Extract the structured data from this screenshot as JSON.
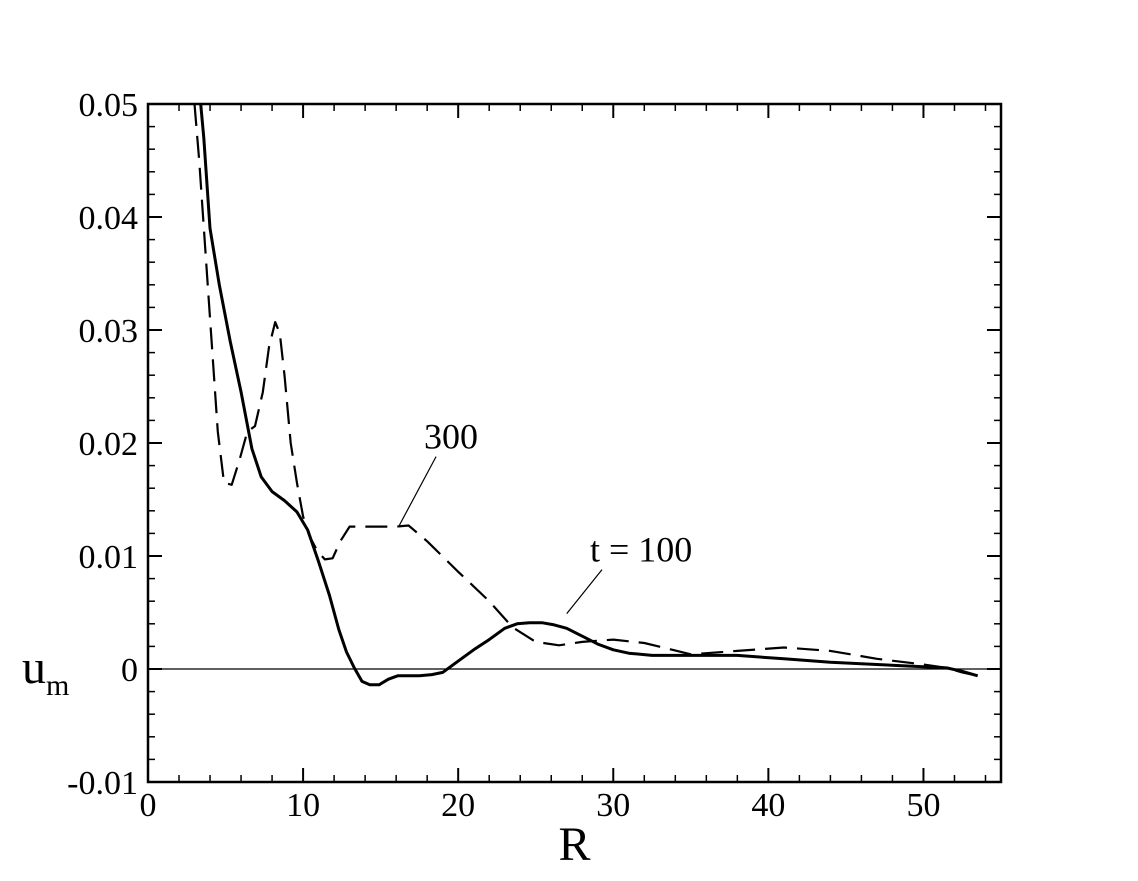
{
  "chart_data": {
    "type": "line",
    "title": "",
    "xlabel": "R",
    "ylabel": "u",
    "ylabel_subscript": "m",
    "xlim": [
      0,
      55
    ],
    "ylim": [
      -0.01,
      0.05
    ],
    "x_ticks": [
      0,
      10,
      20,
      30,
      40,
      50
    ],
    "x_tick_labels": [
      "0",
      "10",
      "20",
      "30",
      "40",
      "50"
    ],
    "y_ticks": [
      -0.01,
      0,
      0.01,
      0.02,
      0.03,
      0.04,
      0.05
    ],
    "y_tick_labels": [
      "-0.01",
      "0",
      "0.01",
      "0.02",
      "0.03",
      "0.04",
      "0.05"
    ],
    "grid": false,
    "zero_line": true,
    "series": [
      {
        "style": "solid",
        "x": [
          3.4,
          3.6,
          4.0,
          4.6,
          5.3,
          6.0,
          6.7,
          7.3,
          8.0,
          8.8,
          9.6,
          10.3,
          11.0,
          11.7,
          12.3,
          12.8,
          13.3,
          13.8,
          14.3,
          14.9,
          15.5,
          16.1,
          16.8,
          17.5,
          18.3,
          19.0,
          20.0,
          21.0,
          22.0,
          23.0,
          23.8,
          24.6,
          25.4,
          26.2,
          27.0,
          28.0,
          29.0,
          30.0,
          31.0,
          32.5,
          35.0,
          38.0,
          41.0,
          44.0,
          47.0,
          50.0,
          51.5,
          52.5,
          53.5
        ],
        "y": [
          0.05,
          0.047,
          0.039,
          0.034,
          0.029,
          0.0245,
          0.0195,
          0.017,
          0.0157,
          0.0149,
          0.0139,
          0.0123,
          0.0095,
          0.0065,
          0.0035,
          0.0015,
          0.0001,
          -0.0011,
          -0.0014,
          -0.0014,
          -0.0009,
          -0.0006,
          -0.0006,
          -0.0006,
          -0.0005,
          -0.0003,
          0.0007,
          0.0017,
          0.0026,
          0.0036,
          0.004,
          0.0041,
          0.0041,
          0.0039,
          0.0036,
          0.0029,
          0.0022,
          0.0017,
          0.0014,
          0.0012,
          0.0012,
          0.0012,
          0.0009,
          0.0006,
          0.0004,
          0.0002,
          0.0001,
          -0.0002,
          -0.0006
        ]
      },
      {
        "style": "dashed",
        "x": [
          3.0,
          3.3,
          3.7,
          4.1,
          4.5,
          4.9,
          5.4,
          5.9,
          6.4,
          6.9,
          7.4,
          7.8,
          8.2,
          8.5,
          8.8,
          9.2,
          9.6,
          10.0,
          10.4,
          10.9,
          11.4,
          11.9,
          12.4,
          13.0,
          14.0,
          15.0,
          16.0,
          16.8,
          18.0,
          20.0,
          22.0,
          23.5,
          25.0,
          26.5,
          28.0,
          30.0,
          32.0,
          35.0,
          38.0,
          41.0,
          44.0,
          47.0,
          50.0,
          51.5,
          52.5,
          53.5
        ],
        "y": [
          0.05,
          0.045,
          0.037,
          0.029,
          0.021,
          0.0165,
          0.0163,
          0.0185,
          0.021,
          0.0215,
          0.0245,
          0.0285,
          0.0307,
          0.0297,
          0.026,
          0.02,
          0.0165,
          0.0135,
          0.0118,
          0.0105,
          0.0097,
          0.0098,
          0.0113,
          0.0126,
          0.0126,
          0.0126,
          0.0126,
          0.0127,
          0.0113,
          0.0086,
          0.006,
          0.0037,
          0.0024,
          0.0021,
          0.0024,
          0.0026,
          0.0023,
          0.0013,
          0.0016,
          0.0019,
          0.0016,
          0.0009,
          0.0004,
          0.0001,
          -0.0003,
          -0.0006
        ]
      }
    ],
    "annotations": [
      {
        "text": "300",
        "x": 17.8,
        "y": 0.0195,
        "pointer_to": [
          16.2,
          0.0127
        ]
      },
      {
        "text": "t = 100",
        "x": 28.5,
        "y": 0.0095,
        "pointer_to": [
          27.0,
          0.0049
        ]
      }
    ]
  }
}
